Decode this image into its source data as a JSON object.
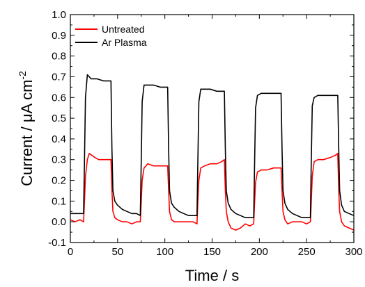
{
  "chart_data": {
    "type": "line",
    "xlabel": "Time / s",
    "ylabel_parts": {
      "main": "Current / ",
      "mu": "μ",
      "unit": "A cm",
      "superscript": "-2"
    },
    "xlim": [
      0,
      300
    ],
    "ylim": [
      -0.1,
      1.0
    ],
    "x_ticks": [
      0,
      50,
      100,
      150,
      200,
      250,
      300
    ],
    "x_tick_labels": [
      "0",
      "50",
      "100",
      "150",
      "200",
      "250",
      "300"
    ],
    "y_ticks": [
      -0.1,
      0.0,
      0.1,
      0.2,
      0.3,
      0.4,
      0.5,
      0.6,
      0.7,
      0.8,
      0.9,
      1.0
    ],
    "y_tick_labels": [
      "-0.1",
      "0.0",
      "0.1",
      "0.2",
      "0.3",
      "0.4",
      "0.5",
      "0.6",
      "0.7",
      "0.8",
      "0.9",
      "1.0"
    ],
    "grid": false,
    "legend_position": "top-left",
    "series": [
      {
        "name": "Untreated",
        "color": "#ff0000",
        "x": [
          0,
          5,
          10,
          14,
          15,
          16,
          18,
          20,
          23,
          26,
          30,
          35,
          40,
          43,
          44,
          45,
          47,
          50,
          55,
          60,
          65,
          70,
          74,
          75,
          76,
          78,
          82,
          88,
          95,
          100,
          103,
          104,
          105,
          107,
          110,
          115,
          120,
          125,
          130,
          134,
          135,
          136,
          138,
          142,
          148,
          155,
          160,
          163,
          164,
          165,
          167,
          170,
          175,
          180,
          185,
          190,
          194,
          195,
          196,
          198,
          202,
          208,
          215,
          220,
          223,
          224,
          225,
          227,
          230,
          235,
          240,
          245,
          250,
          254,
          255,
          256,
          258,
          262,
          268,
          275,
          280,
          283,
          284,
          285,
          287,
          290,
          295,
          300
        ],
        "y": [
          0.01,
          0.0,
          0.01,
          0.0,
          0.1,
          0.22,
          0.3,
          0.33,
          0.32,
          0.31,
          0.3,
          0.3,
          0.3,
          0.3,
          0.15,
          0.05,
          0.02,
          0.01,
          0.0,
          0.0,
          -0.01,
          0.0,
          0.0,
          0.1,
          0.2,
          0.26,
          0.28,
          0.27,
          0.27,
          0.27,
          0.27,
          0.15,
          0.05,
          0.01,
          0.0,
          0.0,
          0.0,
          0.0,
          0.0,
          -0.01,
          0.1,
          0.2,
          0.26,
          0.27,
          0.28,
          0.28,
          0.29,
          0.3,
          0.15,
          0.05,
          0.0,
          -0.03,
          -0.04,
          -0.03,
          -0.01,
          -0.02,
          -0.01,
          0.1,
          0.19,
          0.24,
          0.25,
          0.25,
          0.26,
          0.26,
          0.26,
          0.15,
          0.05,
          0.01,
          -0.01,
          0.0,
          0.0,
          0.0,
          -0.01,
          0.0,
          0.1,
          0.22,
          0.29,
          0.3,
          0.3,
          0.31,
          0.32,
          0.33,
          0.15,
          0.05,
          0.0,
          -0.02,
          -0.03,
          -0.04
        ]
      },
      {
        "name": "Ar Plasma",
        "color": "#000000",
        "x": [
          0,
          5,
          10,
          14,
          15,
          16,
          18,
          22,
          28,
          35,
          40,
          43,
          44,
          45,
          47,
          50,
          55,
          60,
          65,
          70,
          74,
          75,
          76,
          78,
          82,
          88,
          95,
          100,
          103,
          104,
          105,
          107,
          110,
          115,
          120,
          125,
          130,
          134,
          135,
          136,
          138,
          142,
          148,
          155,
          160,
          163,
          164,
          165,
          167,
          170,
          175,
          180,
          185,
          190,
          194,
          195,
          196,
          198,
          202,
          208,
          215,
          220,
          223,
          224,
          225,
          227,
          230,
          235,
          240,
          245,
          250,
          254,
          255,
          256,
          258,
          262,
          268,
          275,
          280,
          283,
          284,
          285,
          287,
          290,
          295,
          300
        ],
        "y": [
          0.04,
          0.04,
          0.04,
          0.04,
          0.3,
          0.6,
          0.71,
          0.69,
          0.69,
          0.68,
          0.68,
          0.68,
          0.35,
          0.15,
          0.1,
          0.08,
          0.06,
          0.05,
          0.04,
          0.04,
          0.03,
          0.3,
          0.58,
          0.66,
          0.66,
          0.66,
          0.65,
          0.65,
          0.65,
          0.35,
          0.15,
          0.09,
          0.07,
          0.05,
          0.04,
          0.03,
          0.03,
          0.03,
          0.3,
          0.58,
          0.64,
          0.64,
          0.64,
          0.63,
          0.63,
          0.63,
          0.35,
          0.15,
          0.09,
          0.06,
          0.04,
          0.03,
          0.02,
          0.02,
          0.02,
          0.3,
          0.55,
          0.61,
          0.62,
          0.62,
          0.62,
          0.62,
          0.62,
          0.35,
          0.15,
          0.09,
          0.06,
          0.04,
          0.03,
          0.02,
          0.02,
          0.02,
          0.3,
          0.56,
          0.6,
          0.61,
          0.61,
          0.61,
          0.61,
          0.61,
          0.35,
          0.15,
          0.08,
          0.05,
          0.04,
          0.03
        ]
      }
    ]
  }
}
